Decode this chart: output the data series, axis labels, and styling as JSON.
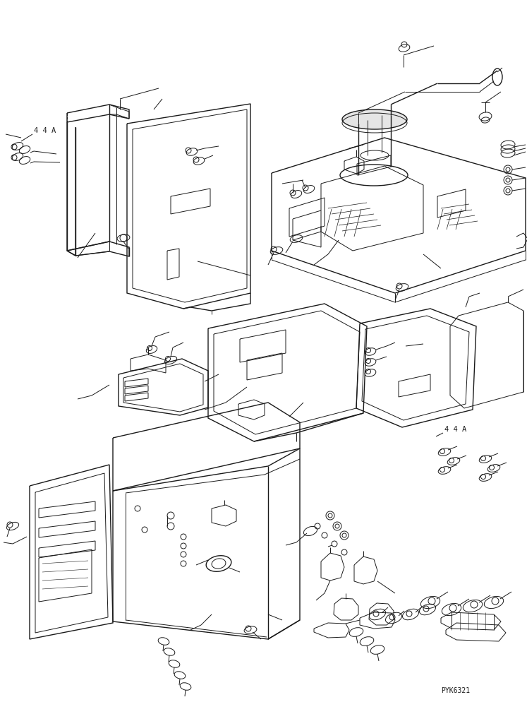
{
  "bg_color": "#ffffff",
  "line_color": "#1a1a1a",
  "lw": 0.7,
  "tlw": 1.0,
  "part_number": "PYK6321",
  "label_44A": "4 4 A",
  "fig_width": 7.47,
  "fig_height": 9.94,
  "dpi": 100
}
